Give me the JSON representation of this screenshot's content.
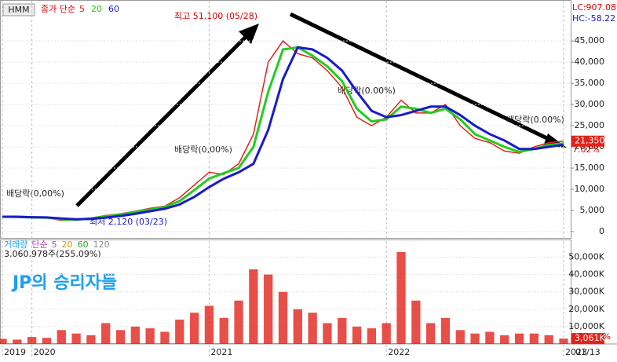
{
  "chart_data": [
    {
      "type": "line",
      "symbol": "HMM",
      "legend_prefix": "종가 단순",
      "categories": [
        "2019",
        null,
        "2020",
        null,
        null,
        null,
        null,
        null,
        null,
        null,
        null,
        null,
        null,
        null,
        "2021",
        null,
        null,
        null,
        null,
        null,
        null,
        null,
        null,
        null,
        null,
        null,
        "2022",
        null,
        null,
        null,
        null,
        null,
        null,
        null,
        null,
        null,
        null,
        null,
        "2023"
      ],
      "series": [
        {
          "name": "5",
          "color": "#e2231a",
          "values": [
            3500,
            3400,
            3300,
            3300,
            2600,
            2900,
            3200,
            3800,
            4200,
            4800,
            5500,
            6000,
            8000,
            11000,
            14000,
            13500,
            16000,
            23000,
            40000,
            45000,
            42000,
            41000,
            38000,
            34000,
            27000,
            25000,
            27000,
            31000,
            28000,
            28000,
            30000,
            25000,
            22000,
            21000,
            19000,
            18500,
            20000,
            21000,
            21350
          ]
        },
        {
          "name": "20",
          "color": "#22cc22",
          "values": [
            3500,
            3450,
            3350,
            3300,
            2900,
            2800,
            3100,
            3600,
            4000,
            4600,
            5200,
            5800,
            7200,
            9800,
            12500,
            13800,
            15000,
            20000,
            33000,
            43000,
            43500,
            41500,
            39000,
            35500,
            29000,
            26000,
            26500,
            29500,
            29000,
            28000,
            29000,
            26500,
            23000,
            21500,
            20000,
            18800,
            19500,
            20500,
            20800
          ]
        },
        {
          "name": "60",
          "color": "#1a1acc",
          "values": [
            3500,
            3500,
            3400,
            3350,
            3100,
            2900,
            3000,
            3300,
            3700,
            4200,
            4800,
            5400,
            6400,
            8200,
            10500,
            12500,
            14000,
            16000,
            24000,
            36000,
            43500,
            43000,
            41000,
            38000,
            33000,
            28500,
            27000,
            27500,
            28500,
            29500,
            29500,
            27500,
            25000,
            23000,
            21500,
            19500,
            19500,
            20000,
            20500
          ]
        }
      ],
      "ylim": [
        -1500,
        54300
      ],
      "yticks": [
        0,
        {
          "value": 5000,
          "label": "5,000"
        },
        {
          "value": 10000,
          "label": "10,000"
        },
        {
          "value": 15000,
          "label": "15,000"
        },
        {
          "value": 20000,
          "label": "20,000"
        },
        {
          "value": 25000,
          "label": "25,000"
        },
        {
          "value": 30000,
          "label": "30,000"
        },
        {
          "value": 35000,
          "label": "35,000"
        },
        {
          "value": 40000,
          "label": "40,000"
        },
        {
          "value": 45000,
          "label": "45,000"
        }
      ],
      "last_price": {
        "value": 21350,
        "label": "21,350"
      },
      "last_change": "7.02%",
      "lc": "LC:907.08",
      "hc": "HC:-58.22",
      "annotations": [
        "최고 51,100 (05/28)",
        "최저 2,120 (03/23)",
        "배당락(0,00%)",
        "배당락(0,00%)",
        "배당락(0.00%)",
        "배당락(0.00%)"
      ],
      "date_label": "01/13"
    },
    {
      "type": "bar",
      "title": "거래량",
      "legend_prefix": "단순",
      "ma_names": [
        "5",
        "20",
        "60",
        "120"
      ],
      "ma_colors": [
        "#b044b0",
        "#c8a000",
        "#22aa22",
        "#888888"
      ],
      "info": "3,060,978주(255,09%)",
      "color": "#e2231a",
      "values": [
        3000,
        2500,
        4000,
        3500,
        8000,
        6000,
        5000,
        12000,
        8000,
        10000,
        9000,
        7000,
        14000,
        18000,
        22000,
        15000,
        25000,
        43000,
        40000,
        30000,
        20000,
        18000,
        12000,
        15000,
        10000,
        9000,
        12000,
        53000,
        25000,
        12000,
        15000,
        8000,
        6000,
        7000,
        5000,
        6000,
        6000,
        5000,
        3061
      ],
      "ylim": [
        0,
        60200
      ],
      "yticks": [
        {
          "value": 10000,
          "label": "10,000K"
        },
        {
          "value": 20000,
          "label": "20,000K"
        },
        {
          "value": 30000,
          "label": "30,000K"
        },
        {
          "value": 40000,
          "label": "40,000K"
        },
        {
          "value": 50000,
          "label": "50,000K"
        }
      ],
      "last_volume": {
        "value": 3061,
        "label": "3,061K"
      },
      "last_ratio": "255.09%",
      "watermark": "JP의 승리자들"
    }
  ]
}
